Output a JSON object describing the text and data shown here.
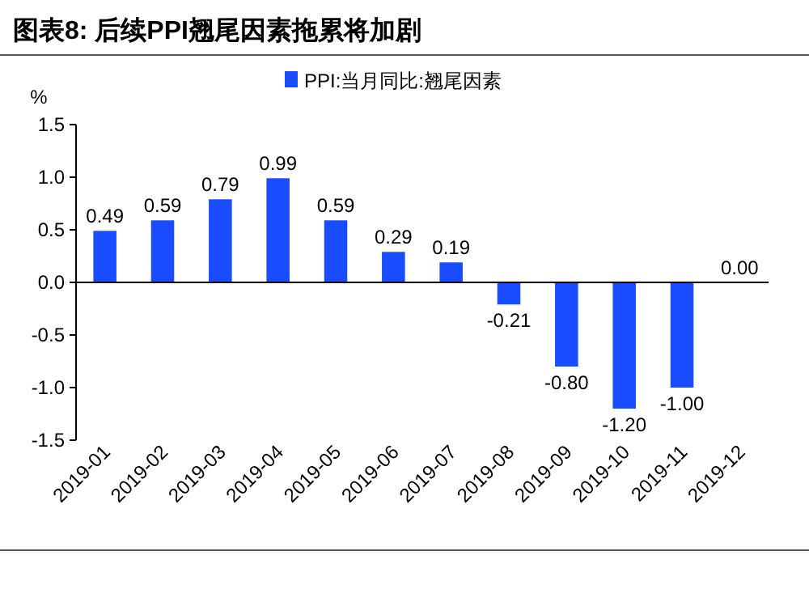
{
  "chart_data": {
    "type": "bar",
    "title": "图表8:   后续PPI翘尾因素拖累将加剧",
    "ylabel": "%",
    "categories": [
      "2019-01",
      "2019-02",
      "2019-03",
      "2019-04",
      "2019-05",
      "2019-06",
      "2019-07",
      "2019-08",
      "2019-09",
      "2019-10",
      "2019-11",
      "2019-12"
    ],
    "series": [
      {
        "name": "PPI:当月同比:翘尾因素",
        "color": "#1a4cff",
        "values": [
          0.49,
          0.59,
          0.79,
          0.99,
          0.59,
          0.29,
          0.19,
          -0.21,
          -0.8,
          -1.2,
          -1.0,
          0.0
        ],
        "value_labels": [
          "0.49",
          "0.59",
          "0.79",
          "0.99",
          "0.59",
          "0.29",
          "0.19",
          "-0.21",
          "-0.80",
          "-1.20",
          "-1.00",
          "0.00"
        ]
      }
    ],
    "ylim": [
      -1.5,
      1.5
    ],
    "yticks": [
      {
        "value": 1.5,
        "label": "1.5"
      },
      {
        "value": 1,
        "label": "1.0"
      },
      {
        "value": 0.5,
        "label": "0.5"
      },
      {
        "value": 0,
        "label": "0.0"
      },
      {
        "value": -0.5,
        "label": "-0.5"
      },
      {
        "value": -1,
        "label": "-1.0"
      },
      {
        "value": -1.5,
        "label": "-1.5"
      }
    ],
    "legend": "top"
  }
}
